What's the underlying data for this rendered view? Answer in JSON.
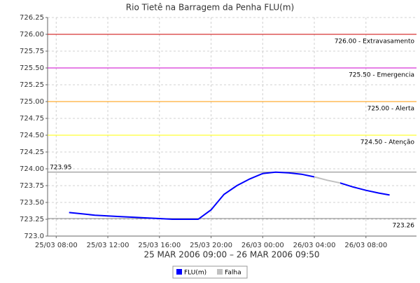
{
  "chart_data": {
    "type": "line",
    "title": "Rio Tietê na Barragem da Penha FLU(m)",
    "subtitle": "25 MAR 2006 09:00 – 26 MAR 2006 09:50",
    "x": [
      "2006-03-25T09:00",
      "2006-03-25T10:00",
      "2006-03-25T11:00",
      "2006-03-25T12:00",
      "2006-03-25T13:00",
      "2006-03-25T14:00",
      "2006-03-25T15:00",
      "2006-03-25T16:00",
      "2006-03-25T17:00",
      "2006-03-25T18:00",
      "2006-03-25T19:00",
      "2006-03-25T20:00",
      "2006-03-25T21:00",
      "2006-03-25T22:00",
      "2006-03-25T23:00",
      "2006-03-26T00:00",
      "2006-03-26T01:00",
      "2006-03-26T02:00",
      "2006-03-26T03:00",
      "2006-03-26T04:00",
      "2006-03-26T05:00",
      "2006-03-26T06:00",
      "2006-03-26T07:00",
      "2006-03-26T08:00",
      "2006-03-26T09:00",
      "2006-03-26T09:50"
    ],
    "series": [
      {
        "name": "FLU(m)",
        "color": "#0000ff",
        "values": [
          723.35,
          723.33,
          723.31,
          723.3,
          723.29,
          723.28,
          723.27,
          723.26,
          723.25,
          723.25,
          723.25,
          723.39,
          723.62,
          723.75,
          723.85,
          723.93,
          723.95,
          723.94,
          723.92,
          723.88,
          null,
          723.79,
          723.73,
          723.68,
          723.64,
          723.61
        ]
      },
      {
        "name": "Falha",
        "color": "#c0c0c0",
        "values": [
          null,
          null,
          null,
          null,
          null,
          null,
          null,
          null,
          null,
          null,
          null,
          null,
          null,
          null,
          null,
          null,
          null,
          null,
          null,
          723.88,
          723.83,
          723.79,
          null,
          null,
          null,
          null
        ]
      }
    ],
    "xlim": [
      "2006-03-25T07:20",
      "2006-03-26T11:55"
    ],
    "xticks": [
      {
        "value": "2006-03-25T08:00",
        "label": "25/03 08:00"
      },
      {
        "value": "2006-03-25T12:00",
        "label": "25/03 12:00"
      },
      {
        "value": "2006-03-25T16:00",
        "label": "25/03 16:00"
      },
      {
        "value": "2006-03-25T20:00",
        "label": "25/03 20:00"
      },
      {
        "value": "2006-03-26T00:00",
        "label": "26/03 00:00"
      },
      {
        "value": "2006-03-26T04:00",
        "label": "26/03 04:00"
      },
      {
        "value": "2006-03-26T08:00",
        "label": "26/03 08:00"
      }
    ],
    "ylim": [
      723.0,
      726.25
    ],
    "yticks": [
      {
        "value": 723.0,
        "label": "723.0"
      },
      723.25,
      {
        "value": 723.5,
        "label": "723.50"
      },
      723.75,
      {
        "value": 724.0,
        "label": "724.00"
      },
      724.25,
      {
        "value": 724.5,
        "label": "724.50"
      },
      724.75,
      {
        "value": 725.0,
        "label": "725.00"
      },
      725.25,
      {
        "value": 725.5,
        "label": "725.50"
      },
      725.75,
      {
        "value": 726.0,
        "label": "726.00"
      },
      726.25
    ],
    "grid": true,
    "thresholds": [
      {
        "value": 726.0,
        "label": "726.00 - Extravasamento",
        "color": "#cc0000",
        "side": "right"
      },
      {
        "value": 725.5,
        "label": "725.50 - Emergencia",
        "color": "#cc00cc",
        "side": "right"
      },
      {
        "value": 725.0,
        "label": "725.00 - Alerta",
        "color": "#ff9900",
        "side": "right"
      },
      {
        "value": 724.5,
        "label": "724.50 - Atenção",
        "color": "#ffff00",
        "side": "right"
      },
      {
        "value": 723.95,
        "label": "723.95",
        "color": "#808080",
        "side": "left"
      },
      {
        "value": 723.26,
        "label": "723.26",
        "color": "#808080",
        "side": "right"
      }
    ]
  }
}
